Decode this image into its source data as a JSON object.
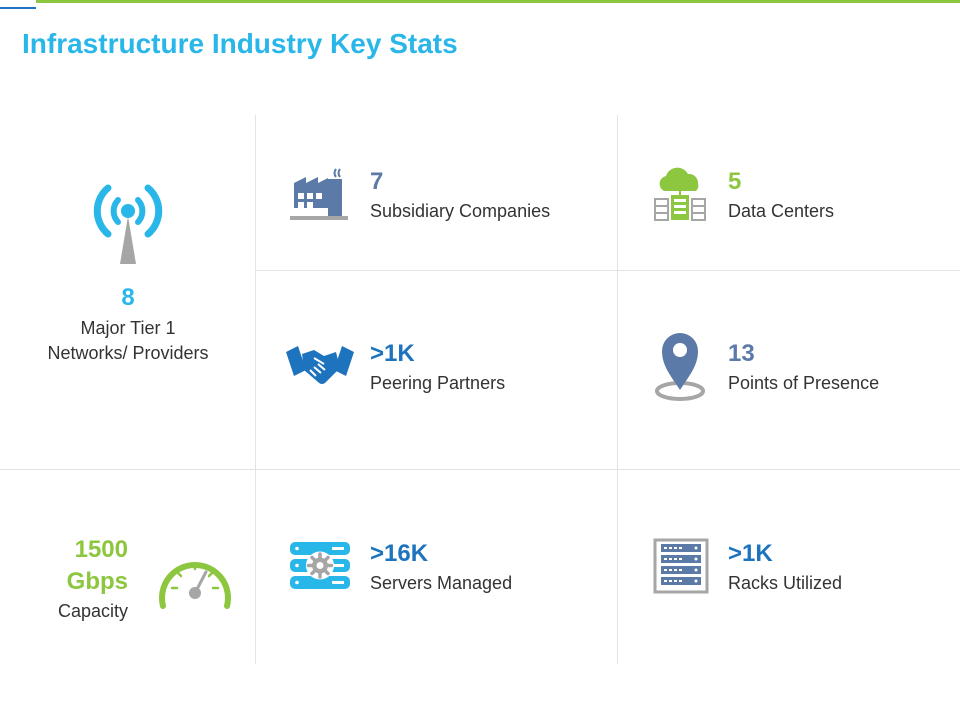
{
  "title": "Infrastructure Industry Key Stats",
  "colors": {
    "title_cyan": "#29b6e8",
    "slate_blue": "#5b7aa8",
    "green": "#8dc63f",
    "royal_blue": "#1e73be",
    "gray": "#a6a6a6"
  },
  "stats": [
    {
      "value": "8",
      "label_line1": "Major Tier 1",
      "label_line2": "Networks/ Providers",
      "icon": "antenna-tower-icon"
    },
    {
      "value": "7",
      "label": "Subsidiary Companies",
      "icon": "factory-icon"
    },
    {
      "value": "5",
      "label": "Data Centers",
      "icon": "cloud-data-center-icon"
    },
    {
      "value": ">1K",
      "label": "Peering Partners",
      "icon": "handshake-icon"
    },
    {
      "value": "13",
      "label": "Points of Presence",
      "icon": "map-pin-icon"
    },
    {
      "value_line1": "1500",
      "value_line2": "Gbps",
      "label": "Capacity",
      "icon": "speedometer-icon"
    },
    {
      "value": ">16K",
      "label": "Servers Managed",
      "icon": "server-gear-icon"
    },
    {
      "value": ">1K",
      "label": "Racks Utilized",
      "icon": "server-rack-icon"
    }
  ]
}
